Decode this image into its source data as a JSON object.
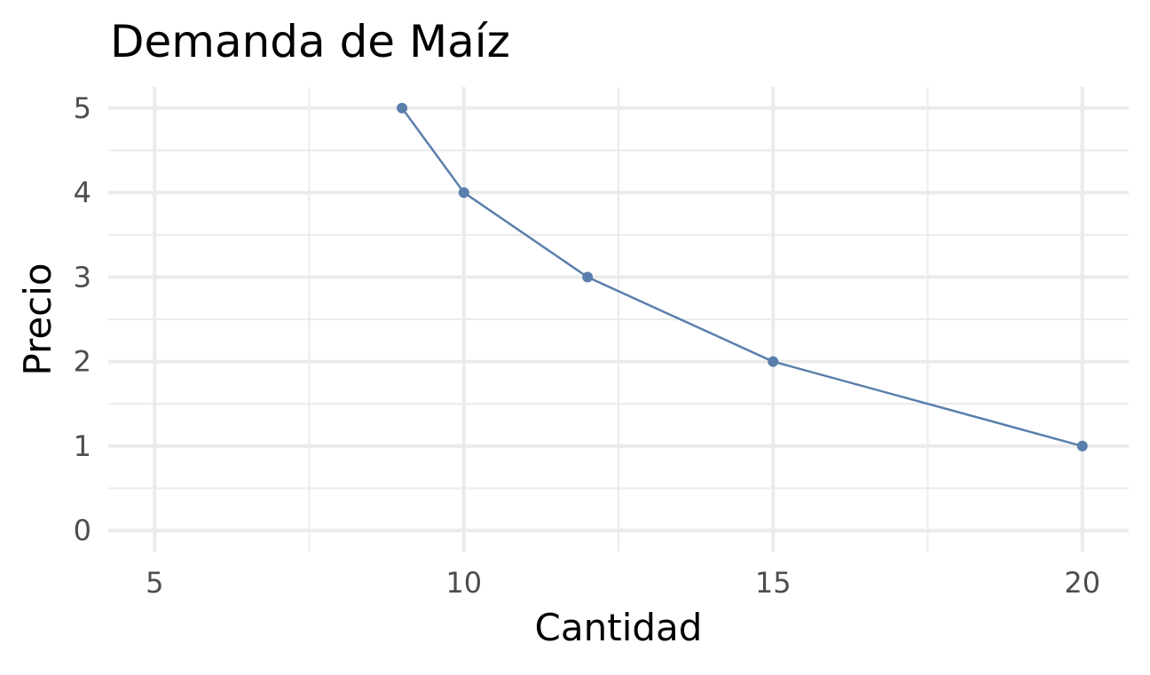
{
  "chart_data": {
    "type": "line",
    "title": "Demanda de Maíz",
    "xlabel": "Cantidad",
    "ylabel": "Precio",
    "xlim": [
      4.25,
      20.75
    ],
    "ylim": [
      -0.25,
      5.25
    ],
    "x_ticks": [
      5,
      10,
      15,
      20
    ],
    "y_ticks": [
      0,
      1,
      2,
      3,
      4,
      5
    ],
    "x_minor_ticks": [
      7.5,
      12.5,
      17.5
    ],
    "y_minor_ticks": [
      0.5,
      1.5,
      2.5,
      3.5,
      4.5
    ],
    "grid": true,
    "series": [
      {
        "x": [
          9,
          10,
          12,
          15,
          20
        ],
        "y": [
          5,
          4,
          3,
          2,
          1
        ],
        "color": "#5b7fad"
      }
    ]
  }
}
